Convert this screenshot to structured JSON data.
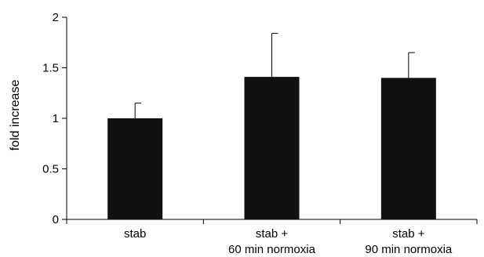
{
  "chart_data": {
    "type": "bar",
    "title": "",
    "xlabel": "",
    "ylabel": "fold increase",
    "ylim": [
      0,
      2
    ],
    "yticks": [
      {
        "value": 0,
        "label": "0"
      },
      {
        "value": 0.5,
        "label": "0.5"
      },
      {
        "value": 1,
        "label": "1"
      },
      {
        "value": 1.5,
        "label": "1.5"
      },
      {
        "value": 2,
        "label": "2"
      }
    ],
    "categories": [
      [
        "stab"
      ],
      [
        "stab +",
        "60 min normoxia"
      ],
      [
        "stab +",
        "90 min normoxia"
      ]
    ],
    "values": [
      1.0,
      1.41,
      1.4
    ],
    "errors": [
      0.15,
      0.43,
      0.25
    ],
    "grid": false,
    "bar_color": "#111111"
  }
}
